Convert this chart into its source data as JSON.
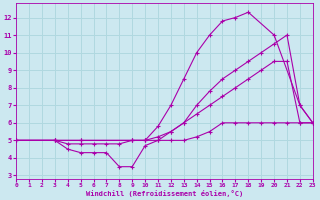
{
  "background_color": "#cce8f0",
  "line_color": "#aa00aa",
  "grid_color": "#b0d8e0",
  "xlabel": "Windchill (Refroidissement éolien,°C)",
  "xlabel_color": "#aa00aa",
  "xticks": [
    0,
    1,
    2,
    3,
    4,
    5,
    6,
    7,
    8,
    9,
    10,
    11,
    12,
    13,
    14,
    15,
    16,
    17,
    18,
    19,
    20,
    21,
    22,
    23
  ],
  "yticks": [
    3,
    4,
    5,
    6,
    7,
    8,
    9,
    10,
    11,
    12
  ],
  "xlim": [
    0,
    23
  ],
  "ylim": [
    2.8,
    12.8
  ],
  "series": [
    {
      "x": [
        0,
        3,
        5,
        9,
        10,
        11,
        12,
        13,
        14,
        15,
        16,
        17,
        18,
        20,
        22,
        23
      ],
      "y": [
        5,
        5,
        5,
        5,
        5,
        5.8,
        7,
        8.5,
        10,
        11,
        11.8,
        12,
        12.3,
        11,
        7,
        6
      ]
    },
    {
      "x": [
        0,
        3,
        5,
        9,
        10,
        11,
        12,
        13,
        14,
        15,
        16,
        17,
        18,
        19,
        20,
        21,
        22,
        23
      ],
      "y": [
        5,
        5,
        5,
        5,
        5,
        5,
        5.5,
        6,
        7,
        7.8,
        8.5,
        9,
        9.5,
        10,
        10.5,
        11,
        7,
        6
      ]
    },
    {
      "x": [
        0,
        3,
        4,
        5,
        6,
        7,
        8,
        9,
        10,
        11,
        12,
        13,
        14,
        15,
        16,
        17,
        18,
        19,
        20,
        21,
        22,
        23
      ],
      "y": [
        5,
        5,
        4.8,
        4.8,
        4.8,
        4.8,
        4.8,
        5,
        5,
        5.2,
        5.5,
        6,
        6.5,
        7,
        7.5,
        8,
        8.5,
        9,
        9.5,
        9.5,
        6,
        6
      ]
    },
    {
      "x": [
        0,
        3,
        4,
        5,
        6,
        7,
        8,
        9,
        10,
        11,
        12,
        13,
        14,
        15,
        16,
        17,
        18,
        19,
        20,
        21,
        22,
        23
      ],
      "y": [
        5,
        5,
        4.5,
        4.3,
        4.3,
        4.3,
        3.5,
        3.5,
        4.7,
        5,
        5,
        5,
        5.2,
        5.5,
        6,
        6,
        6,
        6,
        6,
        6,
        6,
        6
      ]
    }
  ]
}
